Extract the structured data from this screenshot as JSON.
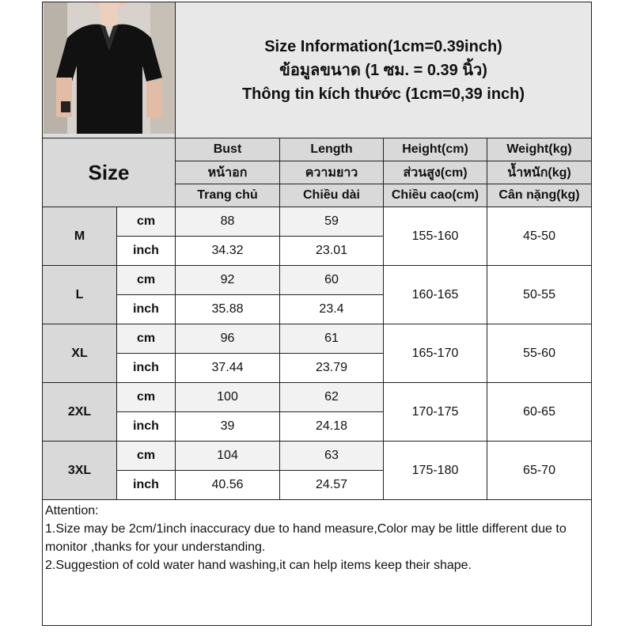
{
  "title": {
    "en": "Size Information(1cm=0.39inch)",
    "th": "ข้อมูลขนาด (1 ซม. = 0.39 นิ้ว)",
    "vi": "Thông tin kích thước (1cm=0,39 inch)"
  },
  "header": {
    "size_label": "Size",
    "columns": [
      {
        "en": "Bust",
        "th": "หน้าอก",
        "vi": "Trang chủ"
      },
      {
        "en": "Length",
        "th": "ความยาว",
        "vi": "Chiều dài"
      },
      {
        "en": "Height(cm)",
        "th": "ส่วนสูง(cm)",
        "vi": "Chiều cao(cm)"
      },
      {
        "en": "Weight(kg)",
        "th": "น้ำหนัก(kg)",
        "vi": "Cân nặng(kg)"
      }
    ]
  },
  "units": {
    "cm": "cm",
    "inch": "inch"
  },
  "rows": [
    {
      "size": "M",
      "bust_cm": "88",
      "length_cm": "59",
      "bust_in": "34.32",
      "length_in": "23.01",
      "height": "155-160",
      "weight": "45-50"
    },
    {
      "size": "L",
      "bust_cm": "92",
      "length_cm": "60",
      "bust_in": "35.88",
      "length_in": "23.4",
      "height": "160-165",
      "weight": "50-55"
    },
    {
      "size": "XL",
      "bust_cm": "96",
      "length_cm": "61",
      "bust_in": "37.44",
      "length_in": "23.79",
      "height": "165-170",
      "weight": "55-60"
    },
    {
      "size": "2XL",
      "bust_cm": "100",
      "length_cm": "62",
      "bust_in": "39",
      "length_in": "24.18",
      "height": "170-175",
      "weight": "60-65"
    },
    {
      "size": "3XL",
      "bust_cm": "104",
      "length_cm": "63",
      "bust_in": "40.56",
      "length_in": "24.57",
      "height": "175-180",
      "weight": "65-70"
    }
  ],
  "attention": {
    "heading": "Attention:",
    "line1": "1.Size may be 2cm/1inch inaccuracy due to hand measure,Color may be little different due to monitor ,thanks for your understanding.",
    "line2": "2.Suggestion of cold water hand washing,it can help items keep their shape."
  }
}
